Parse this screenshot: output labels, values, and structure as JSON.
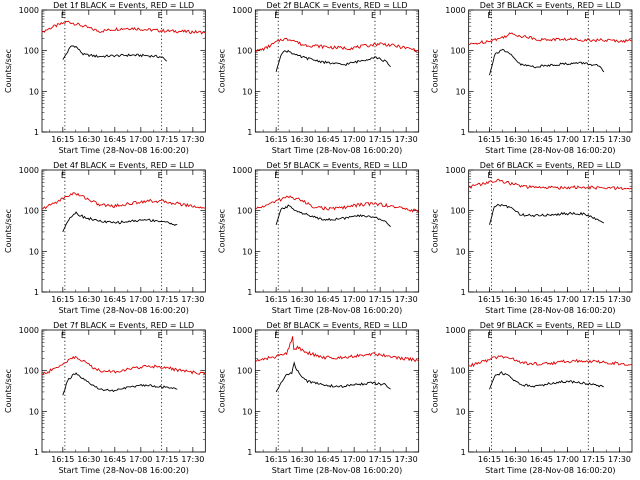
{
  "colors": {
    "events": "#000000",
    "lld": "#e00000",
    "axis": "#000000"
  },
  "shared": {
    "xlabel": "Start Time (28-Nov-08 16:00:20)",
    "ylabel": "Counts/sec",
    "x_ticks": [
      "16:15",
      "16:30",
      "16:45",
      "17:00",
      "17:15",
      "17:30"
    ],
    "y_ticks": [
      "1",
      "10",
      "100",
      "1000"
    ],
    "marker_label": "E"
  },
  "chart_data": [
    {
      "type": "line",
      "title": "Det 1f BLACK = Events, RED = LLD",
      "xlim": [
        16.05,
        17.62
      ],
      "ylim": [
        1,
        1000
      ],
      "yscale": "log",
      "markers": [
        16.27,
        17.2
      ],
      "series": [
        {
          "name": "BLACK = Events",
          "color": "#000000",
          "x": [
            16.25,
            16.33,
            16.37,
            16.45,
            16.6,
            16.75,
            16.9,
            17.05,
            17.2,
            17.25
          ],
          "y": [
            60,
            130,
            130,
            80,
            72,
            75,
            78,
            76,
            70,
            55
          ]
        },
        {
          "name": "RED = LLD",
          "color": "#e00000",
          "x": [
            16.05,
            16.15,
            16.3,
            16.45,
            16.6,
            16.75,
            16.9,
            17.05,
            17.2,
            17.35,
            17.5,
            17.62
          ],
          "y": [
            290,
            380,
            520,
            400,
            300,
            340,
            360,
            330,
            310,
            300,
            290,
            280
          ]
        }
      ]
    },
    {
      "type": "line",
      "title": "Det 2f BLACK = Events, RED = LLD",
      "xlim": [
        16.05,
        17.62
      ],
      "ylim": [
        1,
        1000
      ],
      "yscale": "log",
      "markers": [
        16.27,
        17.2
      ],
      "series": [
        {
          "name": "BLACK = Events",
          "color": "#000000",
          "x": [
            16.25,
            16.3,
            16.37,
            16.45,
            16.6,
            16.75,
            16.9,
            17.05,
            17.2,
            17.3,
            17.35
          ],
          "y": [
            30,
            90,
            100,
            75,
            60,
            50,
            45,
            55,
            70,
            55,
            40
          ]
        },
        {
          "name": "RED = LLD",
          "color": "#e00000",
          "x": [
            16.05,
            16.15,
            16.3,
            16.4,
            16.5,
            16.65,
            16.8,
            16.95,
            17.1,
            17.25,
            17.4,
            17.55,
            17.62
          ],
          "y": [
            95,
            115,
            190,
            190,
            140,
            130,
            120,
            115,
            130,
            150,
            130,
            110,
            100
          ]
        }
      ]
    },
    {
      "type": "line",
      "title": "Det 3f BLACK = Events, RED = LLD",
      "xlim": [
        16.05,
        17.62
      ],
      "ylim": [
        1,
        1000
      ],
      "yscale": "log",
      "markers": [
        16.27,
        17.2
      ],
      "series": [
        {
          "name": "BLACK = Events",
          "color": "#000000",
          "x": [
            16.25,
            16.3,
            16.37,
            16.45,
            16.55,
            16.7,
            16.85,
            17.0,
            17.15,
            17.3,
            17.35
          ],
          "y": [
            25,
            80,
            110,
            80,
            45,
            40,
            45,
            48,
            50,
            42,
            30
          ]
        },
        {
          "name": "RED = LLD",
          "color": "#e00000",
          "x": [
            16.05,
            16.2,
            16.35,
            16.45,
            16.6,
            16.75,
            16.9,
            17.05,
            17.2,
            17.35,
            17.5,
            17.62
          ],
          "y": [
            140,
            165,
            200,
            260,
            220,
            185,
            190,
            190,
            185,
            180,
            175,
            175
          ]
        }
      ]
    },
    {
      "type": "line",
      "title": "Det 4f BLACK = Events, RED = LLD",
      "xlim": [
        16.05,
        17.62
      ],
      "ylim": [
        1,
        1000
      ],
      "yscale": "log",
      "markers": [
        16.27,
        17.2
      ],
      "series": [
        {
          "name": "BLACK = Events",
          "color": "#000000",
          "x": [
            16.25,
            16.3,
            16.37,
            16.45,
            16.6,
            16.75,
            16.9,
            17.05,
            17.2,
            17.35
          ],
          "y": [
            30,
            60,
            90,
            70,
            55,
            50,
            55,
            60,
            55,
            45
          ]
        },
        {
          "name": "RED = LLD",
          "color": "#e00000",
          "x": [
            16.05,
            16.2,
            16.35,
            16.45,
            16.6,
            16.75,
            16.9,
            17.05,
            17.2,
            17.35,
            17.5,
            17.62
          ],
          "y": [
            110,
            170,
            270,
            220,
            140,
            130,
            150,
            175,
            170,
            150,
            130,
            115
          ]
        }
      ]
    },
    {
      "type": "line",
      "title": "Det 5f BLACK = Events, RED = LLD",
      "xlim": [
        16.05,
        17.62
      ],
      "ylim": [
        1,
        1000
      ],
      "yscale": "log",
      "markers": [
        16.27,
        17.2
      ],
      "series": [
        {
          "name": "BLACK = Events",
          "color": "#000000",
          "x": [
            16.25,
            16.3,
            16.37,
            16.45,
            16.6,
            16.75,
            16.9,
            17.05,
            17.2,
            17.3,
            17.35
          ],
          "y": [
            45,
            110,
            130,
            100,
            70,
            60,
            65,
            75,
            70,
            55,
            40
          ]
        },
        {
          "name": "RED = LLD",
          "color": "#e00000",
          "x": [
            16.05,
            16.2,
            16.35,
            16.45,
            16.6,
            16.75,
            16.9,
            17.05,
            17.2,
            17.35,
            17.5,
            17.62
          ],
          "y": [
            110,
            150,
            220,
            200,
            130,
            110,
            120,
            140,
            150,
            130,
            110,
            95
          ]
        }
      ]
    },
    {
      "type": "line",
      "title": "Det 6f BLACK = Events, RED = LLD",
      "xlim": [
        16.05,
        17.62
      ],
      "ylim": [
        1,
        1000
      ],
      "yscale": "log",
      "markers": [
        16.27,
        17.2
      ],
      "series": [
        {
          "name": "BLACK = Events",
          "color": "#000000",
          "x": [
            16.25,
            16.3,
            16.37,
            16.45,
            16.55,
            16.7,
            16.85,
            17.0,
            17.15,
            17.35
          ],
          "y": [
            45,
            130,
            140,
            120,
            80,
            75,
            80,
            85,
            85,
            50
          ]
        },
        {
          "name": "RED = LLD",
          "color": "#e00000",
          "x": [
            16.05,
            16.2,
            16.35,
            16.45,
            16.6,
            16.75,
            16.9,
            17.05,
            17.2,
            17.35,
            17.5,
            17.62
          ],
          "y": [
            380,
            470,
            560,
            470,
            380,
            370,
            370,
            375,
            370,
            360,
            355,
            350
          ]
        }
      ]
    },
    {
      "type": "line",
      "title": "Det 7f BLACK = Events, RED = LLD",
      "xlim": [
        16.05,
        17.62
      ],
      "ylim": [
        1,
        1000
      ],
      "yscale": "log",
      "markers": [
        16.27,
        17.2
      ],
      "series": [
        {
          "name": "BLACK = Events",
          "color": "#000000",
          "x": [
            16.25,
            16.3,
            16.37,
            16.45,
            16.6,
            16.75,
            16.9,
            17.05,
            17.2,
            17.35
          ],
          "y": [
            25,
            60,
            85,
            60,
            35,
            32,
            40,
            45,
            40,
            35
          ]
        },
        {
          "name": "RED = LLD",
          "color": "#e00000",
          "x": [
            16.05,
            16.2,
            16.35,
            16.45,
            16.6,
            16.75,
            16.9,
            17.05,
            17.2,
            17.35,
            17.5,
            17.62
          ],
          "y": [
            80,
            120,
            220,
            170,
            100,
            95,
            110,
            130,
            125,
            105,
            90,
            85
          ]
        }
      ]
    },
    {
      "type": "line",
      "title": "Det 8f BLACK = Events, RED = LLD",
      "xlim": [
        16.05,
        17.62
      ],
      "ylim": [
        1,
        1000
      ],
      "yscale": "log",
      "markers": [
        16.27,
        17.2
      ],
      "series": [
        {
          "name": "BLACK = Events",
          "color": "#000000",
          "x": [
            16.25,
            16.33,
            16.4,
            16.42,
            16.45,
            16.55,
            16.7,
            16.85,
            17.0,
            17.15,
            17.3,
            17.35
          ],
          "y": [
            30,
            70,
            90,
            160,
            100,
            55,
            45,
            40,
            45,
            50,
            45,
            35
          ]
        },
        {
          "name": "RED = LLD",
          "color": "#e00000",
          "x": [
            16.05,
            16.2,
            16.35,
            16.41,
            16.42,
            16.45,
            16.55,
            16.7,
            16.85,
            17.0,
            17.15,
            17.3,
            17.45,
            17.62
          ],
          "y": [
            170,
            210,
            260,
            700,
            300,
            380,
            280,
            210,
            210,
            230,
            260,
            240,
            200,
            180
          ]
        }
      ]
    },
    {
      "type": "line",
      "title": "Det 9f BLACK = Events, RED = LLD",
      "xlim": [
        16.05,
        17.62
      ],
      "ylim": [
        1,
        1000
      ],
      "yscale": "log",
      "markers": [
        16.27,
        17.2
      ],
      "series": [
        {
          "name": "BLACK = Events",
          "color": "#000000",
          "x": [
            16.25,
            16.3,
            16.37,
            16.45,
            16.55,
            16.7,
            16.85,
            17.0,
            17.15,
            17.35
          ],
          "y": [
            35,
            75,
            90,
            70,
            45,
            42,
            50,
            55,
            50,
            40
          ]
        },
        {
          "name": "RED = LLD",
          "color": "#e00000",
          "x": [
            16.05,
            16.2,
            16.35,
            16.45,
            16.6,
            16.75,
            16.9,
            17.05,
            17.2,
            17.35,
            17.5,
            17.62
          ],
          "y": [
            130,
            170,
            230,
            200,
            150,
            145,
            160,
            175,
            170,
            160,
            150,
            140
          ]
        }
      ]
    }
  ]
}
